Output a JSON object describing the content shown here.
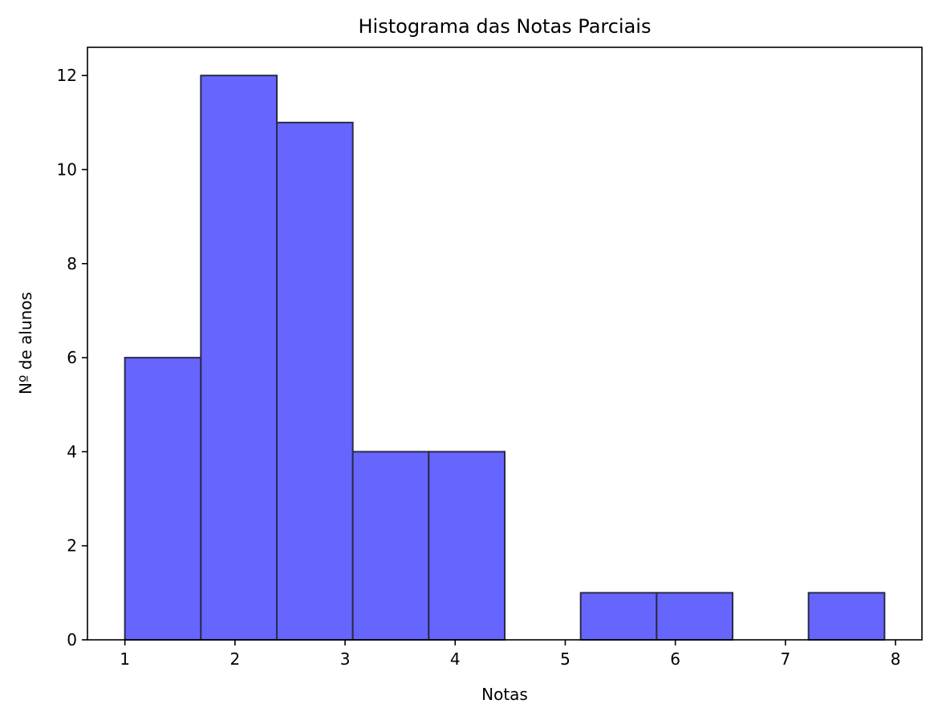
{
  "chart_data": {
    "type": "bar",
    "title": "Histograma das Notas Parciais",
    "xlabel": "Notas",
    "ylabel": "Nº de alunos",
    "xlim": [
      0.66,
      8.24
    ],
    "ylim": [
      0,
      12.6
    ],
    "xticks": [
      "1",
      "2",
      "3",
      "4",
      "5",
      "6",
      "7",
      "8"
    ],
    "yticks": [
      "0",
      "2",
      "4",
      "6",
      "8",
      "10",
      "12"
    ],
    "bin_edges": [
      1.0,
      1.69,
      2.38,
      3.07,
      3.76,
      4.45,
      5.14,
      5.83,
      6.52,
      7.21,
      7.9
    ],
    "counts": [
      6,
      12,
      11,
      4,
      4,
      0,
      1,
      1,
      0,
      1
    ],
    "bar_color": "#6666ff",
    "edge_color": "#2a2a4a",
    "grid": false,
    "legend": "none"
  }
}
